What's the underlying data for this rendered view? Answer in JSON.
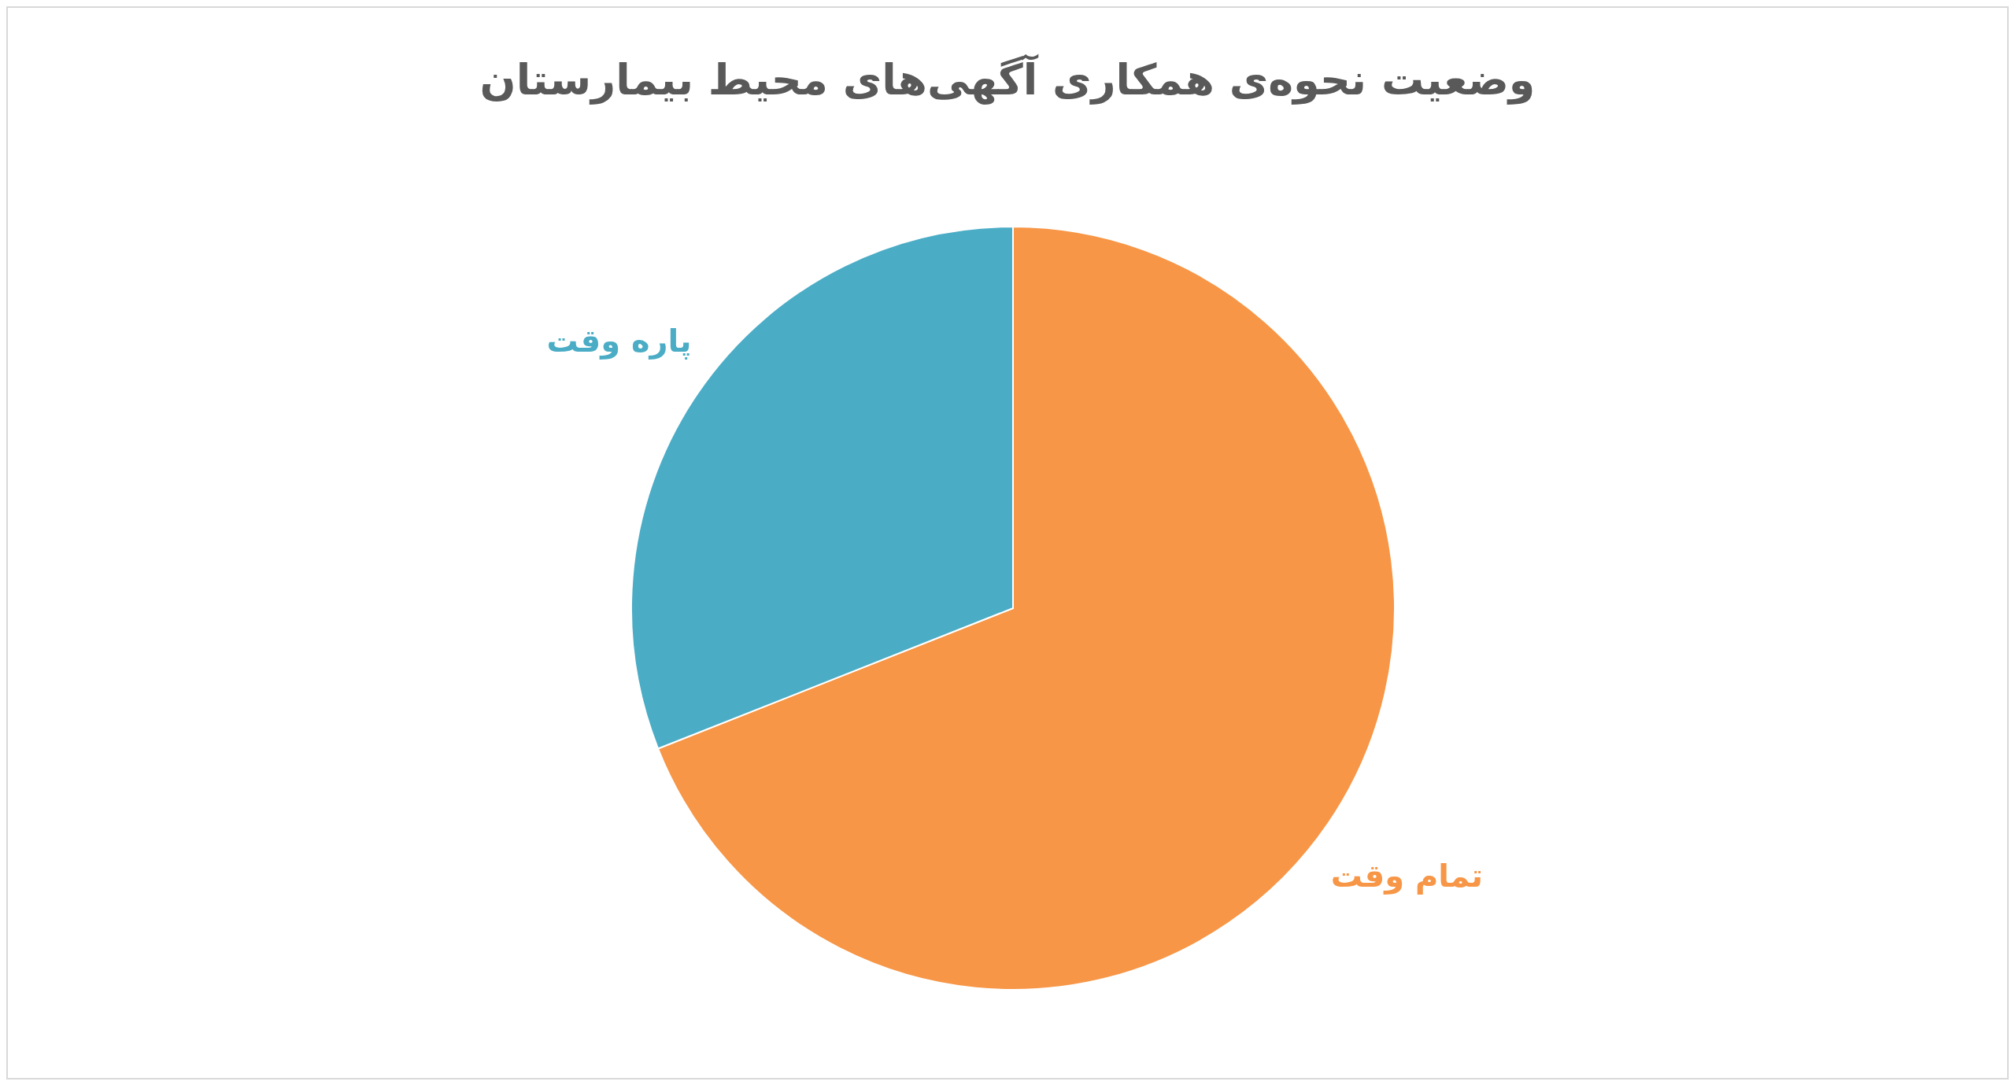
{
  "chart_data": {
    "type": "pie",
    "title": "وضعیت نحوه‌ی همکاری آگهی‌های محیط بیمارستان",
    "categories": [
      "تمام وقت",
      "پاره وقت"
    ],
    "values": [
      69,
      31
    ],
    "colors": [
      "#f79646",
      "#4bacc6"
    ]
  }
}
